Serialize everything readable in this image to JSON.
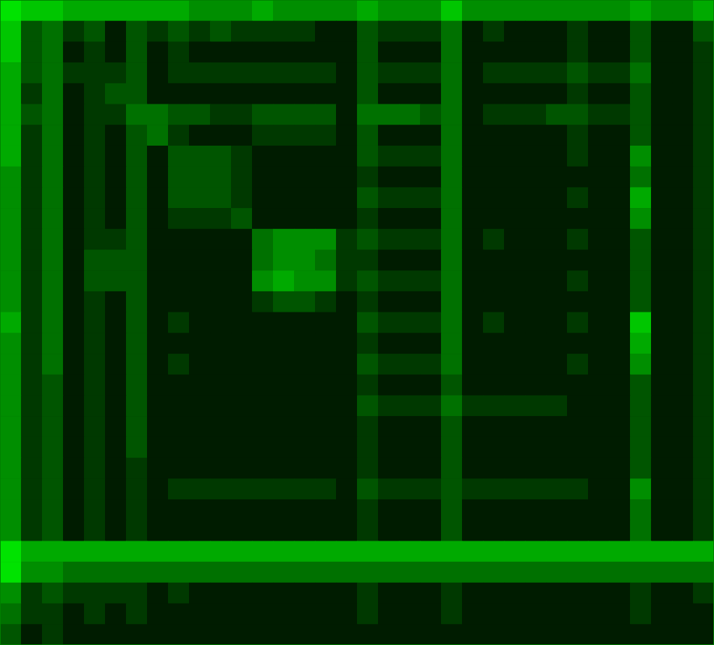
{
  "chart_data": {
    "type": "heatmap",
    "color": "#00ff00",
    "grid": false,
    "tick_labels": false,
    "xlim": [
      0,
      34
    ],
    "ylim": [
      0,
      31
    ],
    "zlim": [
      0,
      9
    ],
    "cells": [
      [
        8,
        7,
        7,
        6,
        6,
        6,
        6,
        6,
        6,
        5,
        5,
        5,
        6,
        5,
        5,
        5,
        5,
        6,
        5,
        5,
        5,
        7,
        5,
        5,
        5,
        5,
        5,
        5,
        5,
        5,
        6,
        5,
        5,
        6
      ],
      [
        7,
        3,
        4,
        2,
        3,
        1,
        3,
        2,
        3,
        2,
        3,
        2,
        2,
        2,
        2,
        1,
        1,
        3,
        2,
        2,
        2,
        4,
        1,
        2,
        1,
        1,
        1,
        2,
        1,
        1,
        3,
        1,
        1,
        3
      ],
      [
        7,
        3,
        4,
        1,
        2,
        1,
        3,
        1,
        2,
        1,
        1,
        1,
        1,
        1,
        1,
        1,
        1,
        3,
        1,
        1,
        1,
        4,
        1,
        1,
        1,
        1,
        1,
        2,
        1,
        1,
        3,
        1,
        1,
        2
      ],
      [
        6,
        3,
        4,
        2,
        2,
        2,
        3,
        1,
        2,
        2,
        2,
        2,
        2,
        2,
        2,
        2,
        1,
        3,
        2,
        2,
        2,
        4,
        1,
        2,
        2,
        2,
        2,
        3,
        2,
        2,
        4,
        1,
        1,
        2
      ],
      [
        6,
        2,
        4,
        1,
        2,
        3,
        3,
        1,
        1,
        1,
        1,
        1,
        1,
        1,
        1,
        1,
        1,
        3,
        1,
        1,
        1,
        4,
        1,
        1,
        1,
        1,
        1,
        2,
        1,
        1,
        3,
        1,
        1,
        2
      ],
      [
        6,
        3,
        4,
        1,
        2,
        2,
        4,
        4,
        3,
        3,
        2,
        2,
        3,
        3,
        3,
        3,
        1,
        4,
        4,
        4,
        3,
        4,
        1,
        2,
        2,
        2,
        3,
        3,
        2,
        2,
        3,
        1,
        1,
        2
      ],
      [
        6,
        2,
        4,
        1,
        2,
        1,
        3,
        4,
        2,
        1,
        1,
        1,
        2,
        2,
        2,
        2,
        1,
        3,
        1,
        1,
        1,
        4,
        1,
        1,
        1,
        1,
        1,
        2,
        1,
        1,
        3,
        1,
        1,
        2
      ],
      [
        6,
        2,
        4,
        1,
        2,
        1,
        3,
        1,
        3,
        3,
        3,
        2,
        1,
        1,
        1,
        1,
        1,
        3,
        2,
        2,
        2,
        4,
        1,
        1,
        1,
        1,
        1,
        2,
        1,
        1,
        5,
        1,
        1,
        2
      ],
      [
        5,
        2,
        4,
        1,
        2,
        1,
        3,
        1,
        3,
        3,
        3,
        2,
        1,
        1,
        1,
        1,
        1,
        2,
        1,
        1,
        1,
        4,
        1,
        1,
        1,
        1,
        1,
        1,
        1,
        1,
        4,
        1,
        1,
        2
      ],
      [
        5,
        2,
        4,
        1,
        2,
        1,
        3,
        1,
        3,
        3,
        3,
        2,
        1,
        1,
        1,
        1,
        1,
        3,
        2,
        2,
        2,
        4,
        1,
        1,
        1,
        1,
        1,
        2,
        1,
        1,
        6,
        1,
        1,
        2
      ],
      [
        5,
        2,
        4,
        1,
        2,
        1,
        3,
        1,
        2,
        2,
        2,
        3,
        1,
        1,
        1,
        1,
        1,
        2,
        1,
        1,
        1,
        4,
        1,
        1,
        1,
        1,
        1,
        1,
        1,
        1,
        5,
        1,
        1,
        2
      ],
      [
        5,
        2,
        4,
        1,
        2,
        2,
        3,
        1,
        1,
        1,
        1,
        1,
        4,
        5,
        5,
        5,
        2,
        3,
        2,
        2,
        2,
        4,
        1,
        2,
        1,
        1,
        1,
        2,
        1,
        1,
        3,
        1,
        1,
        2
      ],
      [
        5,
        2,
        4,
        1,
        3,
        3,
        3,
        1,
        1,
        1,
        1,
        1,
        4,
        5,
        5,
        4,
        2,
        2,
        1,
        1,
        1,
        4,
        1,
        1,
        1,
        1,
        1,
        1,
        1,
        1,
        3,
        1,
        1,
        2
      ],
      [
        5,
        2,
        4,
        1,
        3,
        3,
        3,
        1,
        1,
        1,
        1,
        1,
        5,
        6,
        5,
        5,
        2,
        3,
        2,
        2,
        2,
        4,
        1,
        1,
        1,
        1,
        1,
        2,
        1,
        1,
        3,
        1,
        1,
        2
      ],
      [
        5,
        2,
        4,
        1,
        2,
        1,
        3,
        1,
        1,
        1,
        1,
        1,
        2,
        3,
        3,
        2,
        1,
        2,
        1,
        1,
        1,
        4,
        1,
        1,
        1,
        1,
        1,
        1,
        1,
        1,
        3,
        1,
        1,
        2
      ],
      [
        6,
        2,
        4,
        1,
        2,
        1,
        3,
        1,
        2,
        1,
        1,
        1,
        1,
        1,
        1,
        1,
        1,
        3,
        2,
        2,
        2,
        4,
        1,
        2,
        1,
        1,
        1,
        2,
        1,
        1,
        7,
        1,
        1,
        2
      ],
      [
        5,
        2,
        4,
        1,
        2,
        1,
        3,
        1,
        1,
        1,
        1,
        1,
        1,
        1,
        1,
        1,
        1,
        2,
        1,
        1,
        1,
        4,
        1,
        1,
        1,
        1,
        1,
        1,
        1,
        1,
        6,
        1,
        1,
        2
      ],
      [
        5,
        2,
        4,
        1,
        2,
        1,
        3,
        1,
        2,
        1,
        1,
        1,
        1,
        1,
        1,
        1,
        1,
        3,
        2,
        2,
        2,
        4,
        1,
        1,
        1,
        1,
        1,
        2,
        1,
        1,
        5,
        1,
        1,
        2
      ],
      [
        5,
        2,
        3,
        1,
        2,
        1,
        3,
        1,
        1,
        1,
        1,
        1,
        1,
        1,
        1,
        1,
        1,
        2,
        1,
        1,
        1,
        3,
        1,
        1,
        1,
        1,
        1,
        1,
        1,
        1,
        3,
        1,
        1,
        2
      ],
      [
        5,
        2,
        3,
        1,
        2,
        1,
        3,
        1,
        1,
        1,
        1,
        1,
        1,
        1,
        1,
        1,
        1,
        3,
        2,
        2,
        2,
        4,
        2,
        2,
        2,
        2,
        2,
        1,
        1,
        1,
        3,
        1,
        1,
        2
      ],
      [
        5,
        2,
        3,
        1,
        2,
        1,
        3,
        1,
        1,
        1,
        1,
        1,
        1,
        1,
        1,
        1,
        1,
        2,
        1,
        1,
        1,
        3,
        1,
        1,
        1,
        1,
        1,
        1,
        1,
        1,
        3,
        1,
        1,
        2
      ],
      [
        5,
        2,
        3,
        1,
        2,
        1,
        3,
        1,
        1,
        1,
        1,
        1,
        1,
        1,
        1,
        1,
        1,
        2,
        1,
        1,
        1,
        3,
        1,
        1,
        1,
        1,
        1,
        1,
        1,
        1,
        3,
        1,
        1,
        2
      ],
      [
        5,
        2,
        3,
        1,
        2,
        1,
        2,
        1,
        1,
        1,
        1,
        1,
        1,
        1,
        1,
        1,
        1,
        2,
        1,
        1,
        1,
        3,
        1,
        1,
        1,
        1,
        1,
        1,
        1,
        1,
        3,
        1,
        1,
        2
      ],
      [
        5,
        2,
        3,
        1,
        2,
        1,
        2,
        1,
        2,
        2,
        2,
        2,
        2,
        2,
        2,
        2,
        1,
        3,
        2,
        2,
        2,
        3,
        2,
        2,
        2,
        2,
        2,
        2,
        1,
        1,
        5,
        1,
        1,
        2
      ],
      [
        5,
        2,
        3,
        1,
        2,
        1,
        2,
        1,
        1,
        1,
        1,
        1,
        1,
        1,
        1,
        1,
        1,
        2,
        1,
        1,
        1,
        3,
        1,
        1,
        1,
        1,
        1,
        1,
        1,
        1,
        4,
        1,
        1,
        2
      ],
      [
        5,
        2,
        3,
        1,
        2,
        1,
        2,
        1,
        1,
        1,
        1,
        1,
        1,
        1,
        1,
        1,
        1,
        2,
        1,
        1,
        1,
        3,
        1,
        1,
        1,
        1,
        1,
        1,
        1,
        1,
        4,
        1,
        1,
        2
      ],
      [
        8,
        6,
        6,
        6,
        6,
        6,
        6,
        6,
        6,
        6,
        6,
        6,
        6,
        6,
        6,
        6,
        6,
        6,
        6,
        6,
        6,
        6,
        6,
        6,
        6,
        6,
        6,
        6,
        6,
        6,
        6,
        6,
        6,
        6
      ],
      [
        8,
        5,
        5,
        4,
        4,
        4,
        4,
        4,
        4,
        4,
        4,
        4,
        4,
        4,
        4,
        4,
        4,
        4,
        4,
        4,
        4,
        4,
        4,
        4,
        4,
        4,
        4,
        4,
        4,
        4,
        4,
        4,
        4,
        4
      ],
      [
        5,
        2,
        3,
        2,
        2,
        2,
        2,
        1,
        2,
        1,
        1,
        1,
        1,
        1,
        1,
        1,
        1,
        2,
        1,
        1,
        1,
        2,
        1,
        1,
        1,
        1,
        1,
        1,
        1,
        1,
        2,
        1,
        1,
        2
      ],
      [
        4,
        2,
        2,
        1,
        2,
        1,
        2,
        1,
        1,
        1,
        1,
        1,
        1,
        1,
        1,
        1,
        1,
        2,
        1,
        1,
        1,
        2,
        1,
        1,
        1,
        1,
        1,
        1,
        1,
        1,
        2,
        1,
        1,
        1
      ],
      [
        3,
        1,
        2,
        1,
        1,
        1,
        1,
        1,
        1,
        1,
        1,
        1,
        1,
        1,
        1,
        1,
        1,
        1,
        1,
        1,
        1,
        1,
        1,
        1,
        1,
        1,
        1,
        1,
        1,
        1,
        1,
        1,
        1,
        1
      ]
    ]
  }
}
